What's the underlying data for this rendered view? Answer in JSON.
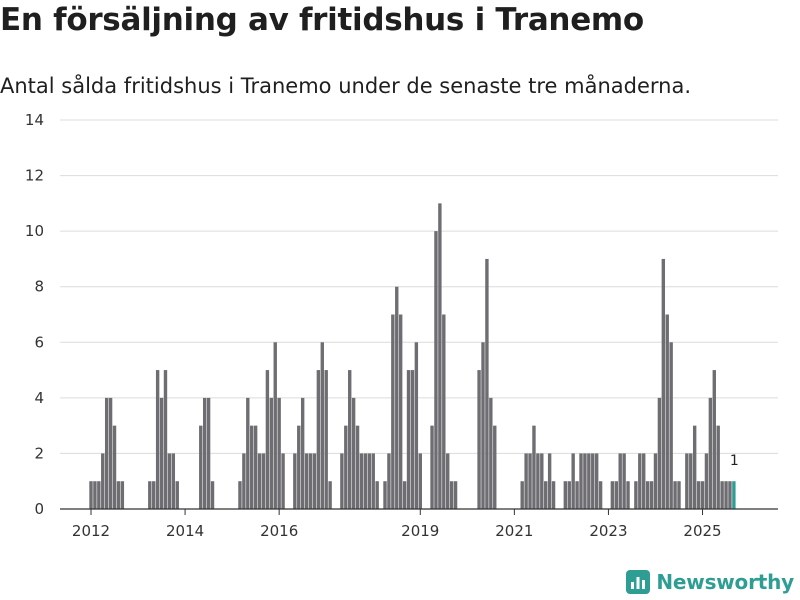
{
  "title": "En försäljning av fritidshus i Tranemo",
  "subtitle": "Antal sålda fritidshus i Tranemo under de senaste tre månaderna.",
  "brand": {
    "name": "Newsworthy",
    "color": "#2e9e94"
  },
  "chart_data": {
    "type": "bar",
    "title": "En försäljning av fritidshus i Tranemo",
    "xlabel": "",
    "ylabel": "",
    "ylim": [
      0,
      14
    ],
    "yticks": [
      0,
      2,
      4,
      6,
      8,
      10,
      12,
      14
    ],
    "xticks": [
      "2012",
      "2014",
      "2016",
      "2019",
      "2021",
      "2023",
      "2025"
    ],
    "grid": true,
    "bar_color": "#6e6d72",
    "highlight_color": "#2e9e94",
    "highlight_label": "1",
    "start": "2012-01",
    "end": "2025-09",
    "values": [
      1,
      1,
      1,
      2,
      4,
      4,
      3,
      1,
      1,
      0,
      0,
      0,
      0,
      0,
      0,
      1,
      1,
      5,
      4,
      5,
      2,
      2,
      1,
      0,
      0,
      0,
      0,
      0,
      3,
      4,
      4,
      1,
      0,
      0,
      0,
      0,
      0,
      0,
      1,
      2,
      4,
      3,
      3,
      2,
      2,
      5,
      4,
      6,
      4,
      2,
      0,
      0,
      2,
      3,
      4,
      2,
      2,
      2,
      5,
      6,
      5,
      1,
      0,
      0,
      2,
      3,
      5,
      4,
      3,
      2,
      2,
      2,
      2,
      1,
      0,
      1,
      2,
      7,
      8,
      7,
      1,
      5,
      5,
      6,
      2,
      0,
      0,
      3,
      10,
      11,
      7,
      2,
      1,
      1,
      0,
      0,
      0,
      0,
      0,
      5,
      6,
      9,
      4,
      3,
      0,
      0,
      0,
      0,
      0,
      0,
      1,
      2,
      2,
      3,
      2,
      2,
      1,
      2,
      1,
      0,
      0,
      1,
      1,
      2,
      1,
      2,
      2,
      2,
      2,
      2,
      1,
      0,
      0,
      1,
      1,
      2,
      2,
      1,
      0,
      1,
      2,
      2,
      1,
      1,
      2,
      4,
      9,
      7,
      6,
      1,
      1,
      0,
      2,
      2,
      3,
      1,
      1,
      2,
      4,
      5,
      3,
      1,
      1,
      1,
      1
    ]
  }
}
